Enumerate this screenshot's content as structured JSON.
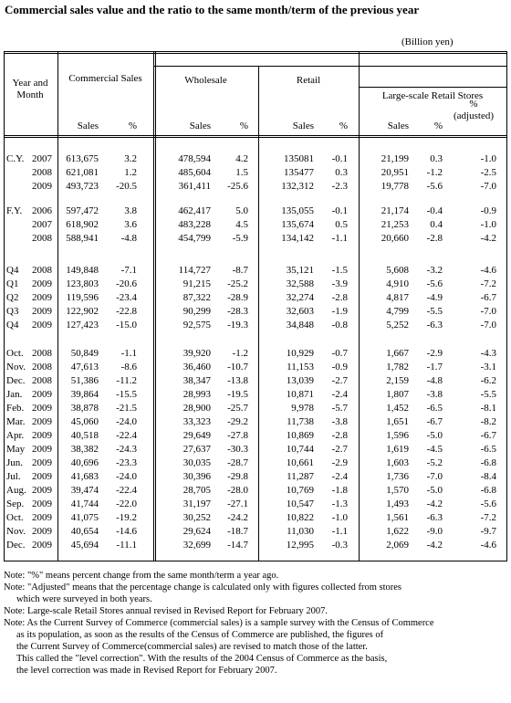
{
  "header": {
    "title": "Commercial sales value and the ratio to the same month/term of the previous year",
    "unit": "(Billion yen)"
  },
  "table": {
    "columns": {
      "year_month": "Year and Month",
      "commercial_sales": "Commercial Sales",
      "wholesale": "Wholesale",
      "retail": "Retail",
      "large_scale": "Large-scale Retail Stores",
      "subheaders": [
        "Sales",
        "%",
        "Sales",
        "%",
        "Sales",
        "%",
        "Sales",
        "%",
        "% (adjusted)"
      ]
    },
    "groups": [
      {
        "rows": [
          {
            "period": "C.Y.",
            "year": "2007",
            "cells": [
              "613,675",
              "3.2",
              "478,594",
              "4.2",
              "135081",
              "-0.1",
              "21,199",
              "0.3",
              "-1.0"
            ]
          },
          {
            "year": "2008",
            "cells": [
              "621,081",
              "1.2",
              "485,604",
              "1.5",
              "135477",
              "0.3",
              "20,951",
              "-1.2",
              "-2.5"
            ]
          },
          {
            "year": "2009",
            "cells": [
              "493,723",
              "-20.5",
              "361,411",
              "-25.6",
              "132,312",
              "-2.3",
              "19,778",
              "-5.6",
              "-7.0"
            ]
          }
        ]
      },
      {
        "rows": [
          {
            "period": "F.Y.",
            "year": "2006",
            "cells": [
              "597,472",
              "3.8",
              "462,417",
              "5.0",
              "135,055",
              "-0.1",
              "21,174",
              "-0.4",
              "-0.9"
            ]
          },
          {
            "year": "2007",
            "cells": [
              "618,902",
              "3.6",
              "483,228",
              "4.5",
              "135,674",
              "0.5",
              "21,253",
              "0.4",
              "-1.0"
            ]
          },
          {
            "year": "2008",
            "cells": [
              "588,941",
              "-4.8",
              "454,799",
              "-5.9",
              "134,142",
              "-1.1",
              "20,660",
              "-2.8",
              "-4.2"
            ]
          }
        ]
      },
      {
        "rows": [
          {
            "period": "Q4",
            "year": "2008",
            "cells": [
              "149,848",
              "-7.1",
              "114,727",
              "-8.7",
              "35,121",
              "-1.5",
              "5,608",
              "-3.2",
              "-4.6"
            ]
          },
          {
            "period": "Q1",
            "year": "2009",
            "cells": [
              "123,803",
              "-20.6",
              "91,215",
              "-25.2",
              "32,588",
              "-3.9",
              "4,910",
              "-5.6",
              "-7.2"
            ]
          },
          {
            "period": "Q2",
            "year": "2009",
            "cells": [
              "119,596",
              "-23.4",
              "87,322",
              "-28.9",
              "32,274",
              "-2.8",
              "4,817",
              "-4.9",
              "-6.7"
            ]
          },
          {
            "period": "Q3",
            "year": "2009",
            "cells": [
              "122,902",
              "-22.8",
              "90,299",
              "-28.3",
              "32,603",
              "-1.9",
              "4,799",
              "-5.5",
              "-7.0"
            ]
          },
          {
            "period": "Q4",
            "year": "2009",
            "cells": [
              "127,423",
              "-15.0",
              "92,575",
              "-19.3",
              "34,848",
              "-0.8",
              "5,252",
              "-6.3",
              "-7.0"
            ]
          }
        ]
      },
      {
        "rows": [
          {
            "period": "Oct.",
            "year": "2008",
            "cells": [
              "50,849",
              "-1.1",
              "39,920",
              "-1.2",
              "10,929",
              "-0.7",
              "1,667",
              "-2.9",
              "-4.3"
            ]
          },
          {
            "period": "Nov.",
            "year": "2008",
            "cells": [
              "47,613",
              "-8.6",
              "36,460",
              "-10.7",
              "11,153",
              "-0.9",
              "1,782",
              "-1.7",
              "-3.1"
            ]
          },
          {
            "period": "Dec.",
            "year": "2008",
            "cells": [
              "51,386",
              "-11.2",
              "38,347",
              "-13.8",
              "13,039",
              "-2.7",
              "2,159",
              "-4.8",
              "-6.2"
            ]
          },
          {
            "period": "Jan.",
            "year": "2009",
            "cells": [
              "39,864",
              "-15.5",
              "28,993",
              "-19.5",
              "10,871",
              "-2.4",
              "1,807",
              "-3.8",
              "-5.5"
            ]
          },
          {
            "period": "Feb.",
            "year": "2009",
            "cells": [
              "38,878",
              "-21.5",
              "28,900",
              "-25.7",
              "9,978",
              "-5.7",
              "1,452",
              "-6.5",
              "-8.1"
            ]
          },
          {
            "period": "Mar.",
            "year": "2009",
            "cells": [
              "45,060",
              "-24.0",
              "33,323",
              "-29.2",
              "11,738",
              "-3.8",
              "1,651",
              "-6.7",
              "-8.2"
            ]
          },
          {
            "period": "Apr.",
            "year": "2009",
            "cells": [
              "40,518",
              "-22.4",
              "29,649",
              "-27.8",
              "10,869",
              "-2.8",
              "1,596",
              "-5.0",
              "-6.7"
            ]
          },
          {
            "period": "May",
            "year": "2009",
            "cells": [
              "38,382",
              "-24.3",
              "27,637",
              "-30.3",
              "10,744",
              "-2.7",
              "1,619",
              "-4.5",
              "-6.5"
            ]
          },
          {
            "period": "Jun.",
            "year": "2009",
            "cells": [
              "40,696",
              "-23.3",
              "30,035",
              "-28.7",
              "10,661",
              "-2.9",
              "1,603",
              "-5.2",
              "-6.8"
            ]
          },
          {
            "period": "Jul.",
            "year": "2009",
            "cells": [
              "41,683",
              "-24.0",
              "30,396",
              "-29.8",
              "11,287",
              "-2.4",
              "1,736",
              "-7.0",
              "-8.4"
            ]
          },
          {
            "period": "Aug.",
            "year": "2009",
            "cells": [
              "39,474",
              "-22.4",
              "28,705",
              "-28.0",
              "10,769",
              "-1.8",
              "1,570",
              "-5.0",
              "-6.8"
            ]
          },
          {
            "period": "Sep.",
            "year": "2009",
            "cells": [
              "41,744",
              "-22.0",
              "31,197",
              "-27.1",
              "10,547",
              "-1.3",
              "1,493",
              "-4.2",
              "-5.6"
            ]
          },
          {
            "period": "Oct.",
            "year": "2009",
            "cells": [
              "41,075",
              "-19.2",
              "30,252",
              "-24.2",
              "10,822",
              "-1.0",
              "1,561",
              "-6.3",
              "-7.2"
            ]
          },
          {
            "period": "Nov.",
            "year": "2009",
            "cells": [
              "40,654",
              "-14.6",
              "29,624",
              "-18.7",
              "11,030",
              "-1.1",
              "1,622",
              "-9.0",
              "-9.7"
            ]
          },
          {
            "period": "Dec.",
            "year": "2009",
            "cells": [
              "45,694",
              "-11.1",
              "32,699",
              "-14.7",
              "12,995",
              "-0.3",
              "2,069",
              "-4.2",
              "-4.6"
            ]
          }
        ]
      }
    ]
  },
  "notes": [
    {
      "lines": [
        "Note: \"%\" means percent change from the same month/term a year ago."
      ]
    },
    {
      "lines": [
        "Note:  \"Adjusted\" means that the percentage change is calculated only with figures collected from stores",
        "which were surveyed in both years."
      ]
    },
    {
      "lines": [
        "Note: Large-scale Retail Stores annual revised in Revised Report for February 2007."
      ]
    },
    {
      "lines": [
        "Note: As the Current Survey of Commerce (commercial sales) is a sample survey  with the Census of Commerce",
        "as its population, as soon as the results of the Census of Commerce are published, the figures of",
        "the Current Survey of Commerce(commercial sales) are revised to match those of the latter.",
        "This called the \"level correction\".    With the results of the 2004 Census of Commerce as the basis,",
        "the level correction was made in Revised Report for February 2007."
      ]
    }
  ]
}
